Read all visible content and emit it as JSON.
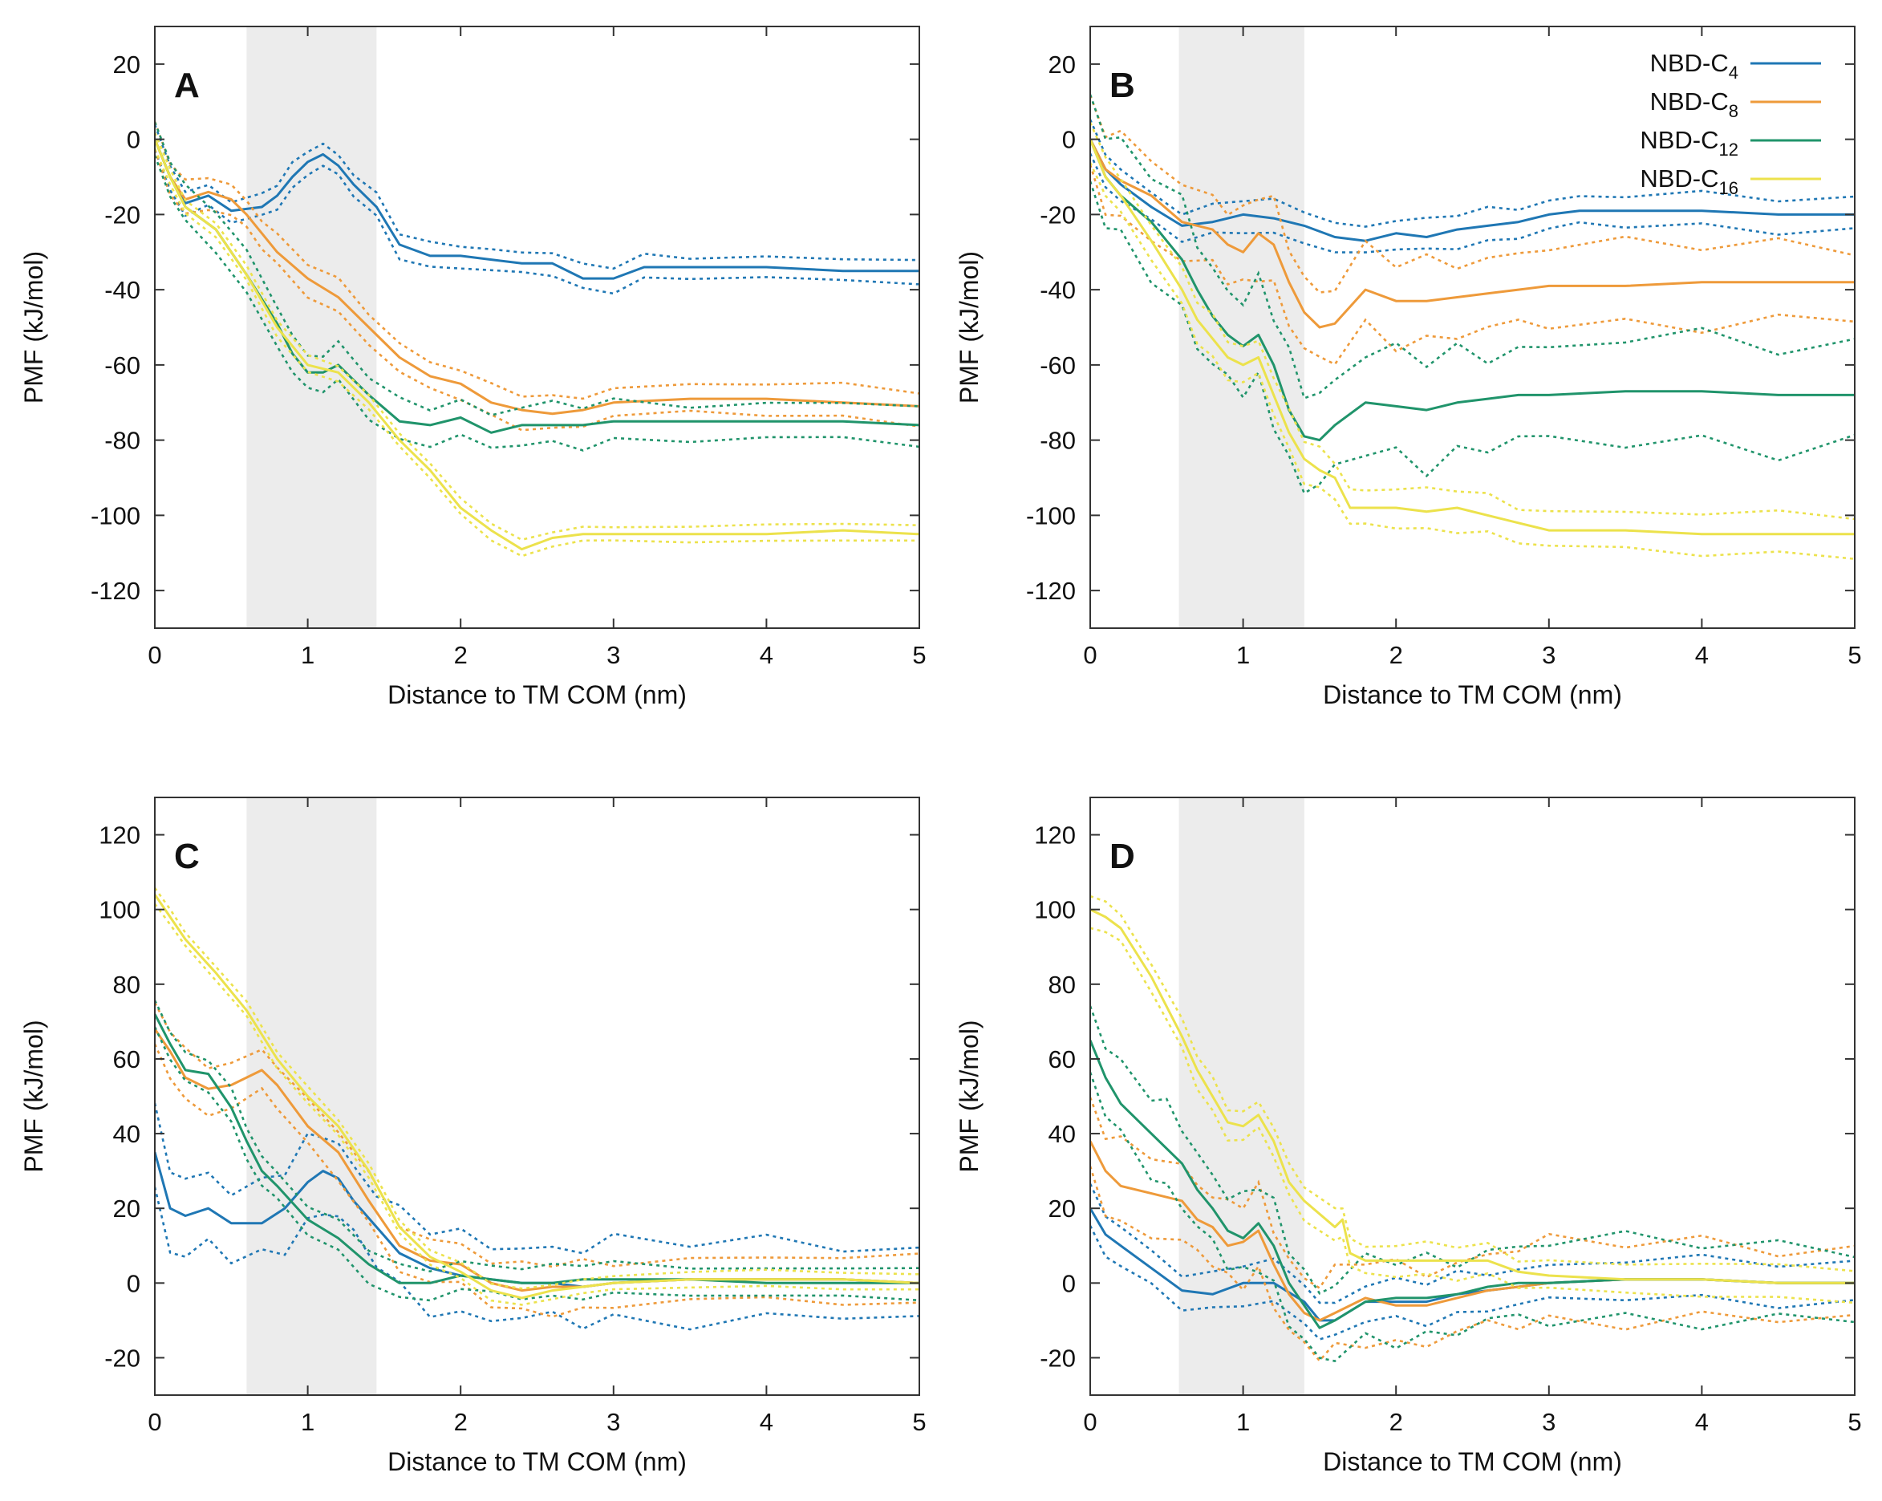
{
  "figure": {
    "colors": {
      "NBD-C4": "#1f77b4",
      "NBD-C8": "#ee9a3a",
      "NBD-C12": "#20946b",
      "NBD-C16": "#ece24c",
      "shade": "#ececec",
      "axis": "#333333"
    },
    "legend": [
      {
        "key": "NBD-C4",
        "base": "NBD-C",
        "sub": "4"
      },
      {
        "key": "NBD-C8",
        "base": "NBD-C",
        "sub": "8"
      },
      {
        "key": "NBD-C12",
        "base": "NBD-C",
        "sub": "12"
      },
      {
        "key": "NBD-C16",
        "base": "NBD-C",
        "sub": "16"
      }
    ]
  },
  "chart_data": [
    {
      "type": "line",
      "panel": "A",
      "xlabel": "Distance to TM COM (nm)",
      "ylabel": "PMF (kJ/mol)",
      "xlim": [
        0,
        5
      ],
      "ylim": [
        -130,
        30
      ],
      "xticks": [
        0,
        1,
        2,
        3,
        4,
        5
      ],
      "yticks": [
        -120,
        -100,
        -80,
        -60,
        -40,
        -20,
        0,
        20
      ],
      "shaded_region": [
        0.6,
        1.45
      ],
      "legend": false,
      "series": [
        {
          "name": "NBD-C4",
          "x": [
            0,
            0.1,
            0.2,
            0.35,
            0.5,
            0.7,
            0.8,
            0.9,
            1.0,
            1.1,
            1.2,
            1.3,
            1.45,
            1.6,
            1.8,
            2.0,
            2.2,
            2.4,
            2.6,
            2.8,
            3.0,
            3.2,
            3.5,
            4.0,
            4.5,
            5.0
          ],
          "y": [
            0,
            -10,
            -17,
            -15,
            -19,
            -18,
            -15,
            -10,
            -6,
            -4,
            -7,
            -12,
            -18,
            -28,
            -31,
            -31,
            -32,
            -33,
            -33,
            -37,
            -37,
            -34,
            -34,
            -34,
            -35,
            -35
          ],
          "band": 3
        },
        {
          "name": "NBD-C8",
          "x": [
            0,
            0.1,
            0.2,
            0.35,
            0.5,
            0.6,
            0.7,
            0.8,
            1.0,
            1.2,
            1.4,
            1.6,
            1.8,
            2.0,
            2.2,
            2.4,
            2.6,
            2.8,
            3.0,
            3.5,
            4.0,
            4.5,
            5.0
          ],
          "y": [
            0,
            -10,
            -16,
            -14,
            -16,
            -20,
            -25,
            -30,
            -37,
            -42,
            -50,
            -58,
            -63,
            -65,
            -70,
            -72,
            -73,
            -72,
            -70,
            -69,
            -69,
            -70,
            -71
          ],
          "band": 4
        },
        {
          "name": "NBD-C12",
          "x": [
            0,
            0.1,
            0.2,
            0.4,
            0.6,
            0.8,
            0.9,
            1.0,
            1.1,
            1.2,
            1.4,
            1.6,
            1.8,
            2.0,
            2.2,
            2.4,
            2.6,
            2.8,
            3.0,
            3.5,
            4.0,
            4.5,
            5.0
          ],
          "y": [
            0,
            -10,
            -18,
            -24,
            -36,
            -49,
            -57,
            -62,
            -62,
            -60,
            -68,
            -75,
            -76,
            -74,
            -78,
            -76,
            -76,
            -76,
            -75,
            -75,
            -75,
            -75,
            -76
          ],
          "band": 5
        },
        {
          "name": "NBD-C16",
          "x": [
            0,
            0.1,
            0.2,
            0.4,
            0.6,
            0.8,
            1.0,
            1.2,
            1.4,
            1.6,
            1.8,
            2.0,
            2.2,
            2.4,
            2.6,
            2.8,
            3.0,
            3.5,
            4.0,
            4.5,
            5.0
          ],
          "y": [
            0,
            -10,
            -18,
            -24,
            -36,
            -50,
            -60,
            -62,
            -70,
            -80,
            -88,
            -98,
            -104,
            -109,
            -106,
            -105,
            -105,
            -105,
            -105,
            -104,
            -105
          ],
          "band": 2
        }
      ]
    },
    {
      "type": "line",
      "panel": "B",
      "xlabel": "Distance to TM COM (nm)",
      "ylabel": "PMF (kJ/mol)",
      "xlim": [
        0,
        5
      ],
      "ylim": [
        -130,
        30
      ],
      "xticks": [
        0,
        1,
        2,
        3,
        4,
        5
      ],
      "yticks": [
        -120,
        -100,
        -80,
        -60,
        -40,
        -20,
        0,
        20
      ],
      "shaded_region": [
        0.58,
        1.4
      ],
      "legend": true,
      "series": [
        {
          "name": "NBD-C4",
          "x": [
            0,
            0.1,
            0.2,
            0.4,
            0.6,
            0.8,
            1.0,
            1.2,
            1.4,
            1.6,
            1.8,
            2.0,
            2.2,
            2.4,
            2.6,
            2.8,
            3.0,
            3.2,
            3.5,
            4.0,
            4.5,
            5.0
          ],
          "y": [
            0,
            -8,
            -12,
            -18,
            -23,
            -22,
            -20,
            -21,
            -23,
            -26,
            -27,
            -25,
            -26,
            -24,
            -23,
            -22,
            -20,
            -19,
            -19,
            -19,
            -20,
            -20
          ],
          "band": 4
        },
        {
          "name": "NBD-C8",
          "x": [
            0,
            0.1,
            0.2,
            0.4,
            0.6,
            0.8,
            0.9,
            1.0,
            1.1,
            1.2,
            1.3,
            1.4,
            1.5,
            1.6,
            1.8,
            2.0,
            2.2,
            2.4,
            2.6,
            2.8,
            3.0,
            3.5,
            4.0,
            4.5,
            5.0
          ],
          "y": [
            0,
            -8,
            -11,
            -15,
            -22,
            -24,
            -28,
            -30,
            -25,
            -28,
            -38,
            -46,
            -50,
            -49,
            -40,
            -43,
            -43,
            -42,
            -41,
            -40,
            -39,
            -39,
            -38,
            -38,
            -38
          ],
          "band": 10
        },
        {
          "name": "NBD-C12",
          "x": [
            0,
            0.1,
            0.2,
            0.4,
            0.6,
            0.7,
            0.8,
            0.9,
            1.0,
            1.1,
            1.2,
            1.3,
            1.4,
            1.5,
            1.6,
            1.8,
            2.0,
            2.2,
            2.4,
            2.6,
            2.8,
            3.0,
            3.5,
            4.0,
            4.5,
            5.0
          ],
          "y": [
            0,
            -10,
            -15,
            -22,
            -32,
            -40,
            -47,
            -52,
            -55,
            -52,
            -60,
            -72,
            -79,
            -80,
            -76,
            -70,
            -71,
            -72,
            -70,
            -69,
            -68,
            -68,
            -67,
            -67,
            -68,
            -68
          ],
          "band": 13
        },
        {
          "name": "NBD-C16",
          "x": [
            0,
            0.1,
            0.2,
            0.4,
            0.6,
            0.7,
            0.8,
            0.9,
            1.0,
            1.1,
            1.2,
            1.3,
            1.4,
            1.5,
            1.6,
            1.7,
            1.8,
            2.0,
            2.2,
            2.4,
            2.6,
            2.8,
            3.0,
            3.5,
            4.0,
            4.5,
            5.0
          ],
          "y": [
            0,
            -10,
            -15,
            -27,
            -40,
            -48,
            -53,
            -58,
            -60,
            -58,
            -68,
            -78,
            -85,
            -88,
            -90,
            -98,
            -98,
            -98,
            -99,
            -98,
            -100,
            -102,
            -104,
            -104,
            -105,
            -105,
            -105
          ],
          "band": 5
        }
      ]
    },
    {
      "type": "line",
      "panel": "C",
      "xlabel": "Distance to TM COM (nm)",
      "ylabel": "PMF (kJ/mol)",
      "xlim": [
        0,
        5
      ],
      "ylim": [
        -30,
        130
      ],
      "xticks": [
        0,
        1,
        2,
        3,
        4,
        5
      ],
      "yticks": [
        -20,
        0,
        20,
        40,
        60,
        80,
        100,
        120
      ],
      "shaded_region": [
        0.6,
        1.45
      ],
      "legend": false,
      "series": [
        {
          "name": "NBD-C4",
          "x": [
            0,
            0.1,
            0.2,
            0.35,
            0.5,
            0.7,
            0.85,
            1.0,
            1.1,
            1.2,
            1.3,
            1.45,
            1.6,
            1.8,
            2.0,
            2.2,
            2.4,
            2.6,
            2.8,
            3.0,
            3.5,
            4.0,
            4.5,
            5.0
          ],
          "y": [
            35,
            20,
            18,
            20,
            16,
            16,
            20,
            27,
            30,
            28,
            22,
            15,
            8,
            4,
            2,
            1,
            0,
            0,
            -1,
            0,
            1,
            1,
            1,
            0
          ],
          "band": 10
        },
        {
          "name": "NBD-C8",
          "x": [
            0,
            0.1,
            0.2,
            0.35,
            0.5,
            0.7,
            0.8,
            1.0,
            1.2,
            1.4,
            1.6,
            1.8,
            2.0,
            2.2,
            2.4,
            2.6,
            2.8,
            3.0,
            3.5,
            4.0,
            4.5,
            5.0
          ],
          "y": [
            68,
            62,
            55,
            52,
            53,
            57,
            53,
            42,
            35,
            22,
            10,
            6,
            5,
            0,
            -2,
            -1,
            -1,
            0,
            1,
            1,
            1,
            0
          ],
          "band": 6
        },
        {
          "name": "NBD-C12",
          "x": [
            0,
            0.1,
            0.2,
            0.35,
            0.5,
            0.6,
            0.7,
            0.8,
            1.0,
            1.2,
            1.4,
            1.6,
            1.8,
            2.0,
            2.2,
            2.4,
            2.6,
            2.8,
            3.0,
            3.5,
            4.0,
            4.5,
            5.0
          ],
          "y": [
            72,
            64,
            57,
            56,
            47,
            38,
            30,
            26,
            17,
            12,
            5,
            0,
            0,
            2,
            1,
            0,
            0,
            1,
            1,
            1,
            0,
            0,
            0
          ],
          "band": 4
        },
        {
          "name": "NBD-C16",
          "x": [
            0,
            0.1,
            0.2,
            0.4,
            0.6,
            0.8,
            1.0,
            1.2,
            1.4,
            1.6,
            1.8,
            2.0,
            2.2,
            2.4,
            2.6,
            2.8,
            3.0,
            3.5,
            4.0,
            4.5,
            5.0
          ],
          "y": [
            104,
            98,
            92,
            83,
            73,
            60,
            50,
            42,
            30,
            15,
            7,
            3,
            -2,
            -4,
            -2,
            -1,
            0,
            1,
            1,
            1,
            0
          ],
          "band": 2
        }
      ]
    },
    {
      "type": "line",
      "panel": "D",
      "xlabel": "Distance to TM COM (nm)",
      "ylabel": "PMF (kJ/mol)",
      "xlim": [
        0,
        5
      ],
      "ylim": [
        -30,
        130
      ],
      "xticks": [
        0,
        1,
        2,
        3,
        4,
        5
      ],
      "yticks": [
        -20,
        0,
        20,
        40,
        60,
        80,
        100,
        120
      ],
      "shaded_region": [
        0.58,
        1.4
      ],
      "legend": false,
      "series": [
        {
          "name": "NBD-C4",
          "x": [
            0,
            0.1,
            0.2,
            0.4,
            0.6,
            0.8,
            1.0,
            1.2,
            1.4,
            1.5,
            1.6,
            1.8,
            2.0,
            2.2,
            2.4,
            2.6,
            2.8,
            3.0,
            3.5,
            4.0,
            4.5,
            5.0
          ],
          "y": [
            20,
            13,
            10,
            4,
            -2,
            -3,
            0,
            0,
            -5,
            -10,
            -10,
            -5,
            -5,
            -5,
            -3,
            -2,
            -1,
            0,
            1,
            1,
            0,
            0
          ],
          "band": 5
        },
        {
          "name": "NBD-C8",
          "x": [
            0,
            0.1,
            0.2,
            0.4,
            0.6,
            0.7,
            0.8,
            0.9,
            1.0,
            1.1,
            1.2,
            1.3,
            1.4,
            1.5,
            1.6,
            1.8,
            2.0,
            2.2,
            2.4,
            2.6,
            2.8,
            3.0,
            3.5,
            4.0,
            4.5,
            5.0
          ],
          "y": [
            38,
            30,
            26,
            24,
            22,
            17,
            15,
            10,
            11,
            14,
            5,
            -3,
            -8,
            -10,
            -8,
            -4,
            -6,
            -6,
            -4,
            -2,
            -1,
            0,
            1,
            1,
            0,
            0
          ],
          "band": 10
        },
        {
          "name": "NBD-C12",
          "x": [
            0,
            0.1,
            0.2,
            0.4,
            0.5,
            0.6,
            0.7,
            0.8,
            0.9,
            1.0,
            1.1,
            1.2,
            1.3,
            1.4,
            1.5,
            1.6,
            1.8,
            2.0,
            2.2,
            2.4,
            2.6,
            2.8,
            3.0,
            3.5,
            4.0,
            4.5,
            5.0
          ],
          "y": [
            65,
            55,
            48,
            40,
            36,
            32,
            25,
            20,
            14,
            12,
            16,
            10,
            0,
            -6,
            -12,
            -10,
            -5,
            -4,
            -4,
            -3,
            -1,
            0,
            0,
            1,
            1,
            0,
            0
          ],
          "band": 10
        },
        {
          "name": "NBD-C16",
          "x": [
            0,
            0.1,
            0.2,
            0.4,
            0.6,
            0.7,
            0.8,
            0.9,
            1.0,
            1.1,
            1.2,
            1.3,
            1.4,
            1.6,
            1.65,
            1.7,
            1.8,
            2.0,
            2.2,
            2.4,
            2.6,
            2.8,
            3.0,
            3.5,
            4.0,
            4.5,
            5.0
          ],
          "y": [
            100,
            98,
            95,
            82,
            66,
            57,
            50,
            43,
            42,
            45,
            38,
            27,
            22,
            15,
            17,
            8,
            6,
            6,
            6,
            6,
            6,
            3,
            2,
            1,
            1,
            0,
            0
          ],
          "band": 4
        }
      ]
    }
  ]
}
